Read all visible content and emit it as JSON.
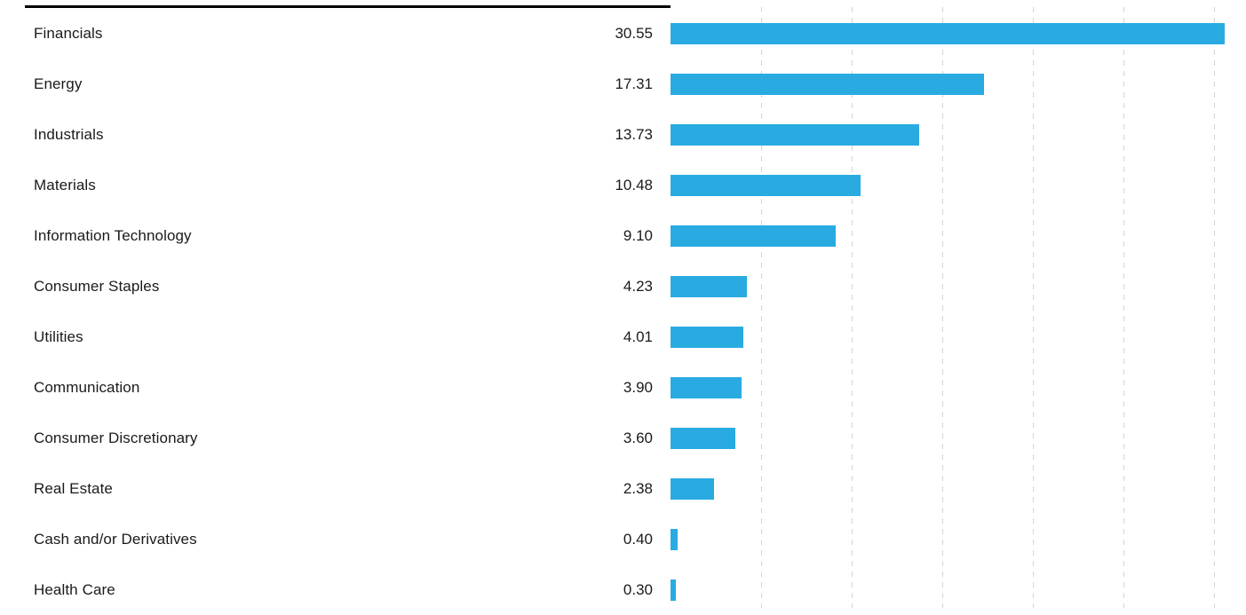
{
  "chart_data": {
    "type": "bar",
    "orientation": "horizontal",
    "title": "",
    "xlabel": "",
    "ylabel": "",
    "xlim": [
      0,
      31.75
    ],
    "grid": true,
    "gridline_style": "dashed-vertical",
    "gridlines": [
      5,
      10,
      15,
      20,
      25,
      30
    ],
    "legend": false,
    "categories": [
      "Financials",
      "Energy",
      "Industrials",
      "Materials",
      "Information Technology",
      "Consumer Staples",
      "Utilities",
      "Communication",
      "Consumer Discretionary",
      "Real Estate",
      "Cash and/or Derivatives",
      "Health Care"
    ],
    "values": [
      30.55,
      17.31,
      13.73,
      10.48,
      9.1,
      4.23,
      4.01,
      3.9,
      3.6,
      2.38,
      0.4,
      0.3
    ],
    "value_labels": [
      "30.55",
      "17.31",
      "13.73",
      "10.48",
      "9.10",
      "4.23",
      "4.01",
      "3.90",
      "3.60",
      "2.38",
      "0.40",
      "0.30"
    ]
  },
  "colors": {
    "bar": "#29abe2",
    "grid": "#d6d6d6",
    "text": "#1a1a1a",
    "top_rule": "#000000"
  }
}
